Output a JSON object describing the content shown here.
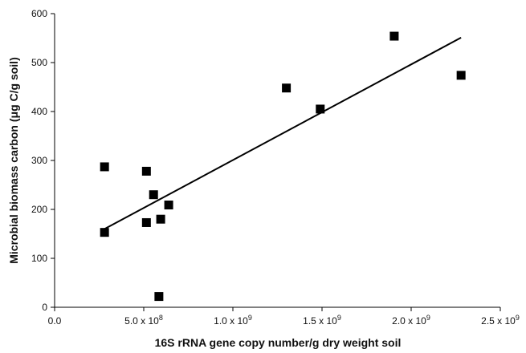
{
  "chart_data": {
    "type": "scatter",
    "title": "",
    "xlabel": "16S rRNA gene copy number/g dry weight soil",
    "ylabel": "Microbial biomass carbon (μg C/g soil)",
    "xlim": [
      0,
      2500000000
    ],
    "ylim": [
      0,
      600
    ],
    "x_ticks": [
      {
        "value": 0,
        "label": "0.0"
      },
      {
        "value": 500000000,
        "label": "5.0 x 10",
        "exp": "8"
      },
      {
        "value": 1000000000,
        "label": "1.0 x 10",
        "exp": "9"
      },
      {
        "value": 1500000000,
        "label": "1.5 x 10",
        "exp": "9"
      },
      {
        "value": 2000000000,
        "label": "2.0 x 10",
        "exp": "9"
      },
      {
        "value": 2500000000,
        "label": "2.5 x 10",
        "exp": "9"
      }
    ],
    "y_ticks": [
      0,
      100,
      200,
      300,
      400,
      500,
      600
    ],
    "grid": false,
    "marker": "square",
    "marker_color": "#000000",
    "series": [
      {
        "points": [
          {
            "x": 280000000,
            "y": 287
          },
          {
            "x": 280000000,
            "y": 153
          },
          {
            "x": 515000000,
            "y": 278
          },
          {
            "x": 515000000,
            "y": 173
          },
          {
            "x": 555000000,
            "y": 230
          },
          {
            "x": 595000000,
            "y": 180
          },
          {
            "x": 640000000,
            "y": 209
          },
          {
            "x": 585000000,
            "y": 22
          },
          {
            "x": 1300000000,
            "y": 448
          },
          {
            "x": 1490000000,
            "y": 405
          },
          {
            "x": 1905000000,
            "y": 554
          },
          {
            "x": 2280000000,
            "y": 474
          }
        ]
      }
    ],
    "trendline": {
      "x": [
        280000000,
        2280000000
      ],
      "y": [
        160,
        551
      ]
    }
  }
}
